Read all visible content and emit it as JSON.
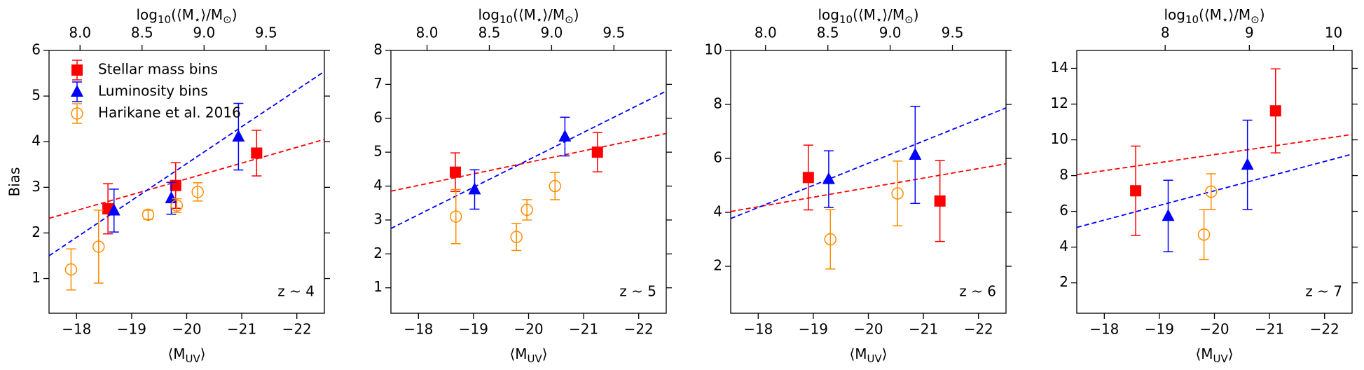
{
  "chart_data": [
    {
      "type": "scatter",
      "annotation": "z ~ 4",
      "legend": "upper left",
      "ylabel": "Bias",
      "xlabel": [
        "⟨M",
        "UV",
        "⟩"
      ],
      "x2label": [
        "log",
        "10",
        "(⟨M",
        "⋆",
        "⟩/M",
        "⊙",
        ")"
      ],
      "xlim": [
        -17.5,
        -22.5
      ],
      "xticks": [
        {
          "value": -18,
          "label": "−18"
        },
        {
          "value": -19,
          "label": "−19"
        },
        {
          "value": -20,
          "label": "−20"
        },
        {
          "value": -21,
          "label": "−21"
        },
        {
          "value": -22,
          "label": "−22"
        }
      ],
      "x2lim": [
        7.75,
        9.97
      ],
      "x2ticks": [
        {
          "value": 8,
          "label": "8.0"
        },
        {
          "value": 8.5,
          "label": "8.5"
        },
        {
          "value": 9,
          "label": "9.0"
        },
        {
          "value": 9.5,
          "label": "9.5"
        }
      ],
      "ylim": [
        0.24,
        6
      ],
      "yticks": [
        1,
        2,
        3,
        4,
        5,
        6
      ],
      "series": [
        {
          "name": "Stellar mass bins",
          "color": "#ff0000",
          "marker": "square",
          "x": [
            -18.57,
            -19.8,
            -21.27
          ],
          "values": [
            2.53,
            3.04,
            3.75
          ],
          "errors": [
            0.55,
            0.5,
            0.5
          ]
        },
        {
          "name": "Luminosity bins",
          "color": "#0000ff",
          "marker": "triangle",
          "x": [
            -18.68,
            -19.72,
            -20.94
          ],
          "values": [
            2.49,
            2.76,
            4.11
          ],
          "errors": [
            0.47,
            0.35,
            0.73
          ]
        },
        {
          "name": "Harikane et al. 2016",
          "color": "#ff8c00",
          "marker": "open-circle",
          "x": [
            -17.9,
            -18.4,
            -19.3,
            -19.82,
            -20.2
          ],
          "values": [
            1.2,
            1.7,
            2.4,
            2.6,
            2.9
          ],
          "errors": [
            0.45,
            0.8,
            0.1,
            0.15,
            0.2
          ]
        }
      ],
      "fits": [
        {
          "color": "#ff0000",
          "x": [
            -17.5,
            -22.5
          ],
          "values": [
            2.32,
            4.05
          ]
        },
        {
          "color": "#0000ff",
          "x": [
            -17.5,
            -22.5
          ],
          "values": [
            1.5,
            5.54
          ]
        }
      ]
    },
    {
      "type": "scatter",
      "annotation": "z ~ 5",
      "xlabel": [
        "⟨M",
        "UV",
        "⟩"
      ],
      "x2label": [
        "log",
        "10",
        "(⟨M",
        "⋆",
        "⟩/M",
        "⊙",
        ")"
      ],
      "xlim": [
        -17.5,
        -22.5
      ],
      "xticks": [
        {
          "value": -18,
          "label": "−18"
        },
        {
          "value": -19,
          "label": "−19"
        },
        {
          "value": -20,
          "label": "−20"
        },
        {
          "value": -21,
          "label": "−21"
        },
        {
          "value": -22,
          "label": "−22"
        }
      ],
      "x2lim": [
        7.71,
        9.92
      ],
      "x2ticks": [
        {
          "value": 8,
          "label": "8.0"
        },
        {
          "value": 8.5,
          "label": "8.5"
        },
        {
          "value": 9,
          "label": "9.0"
        },
        {
          "value": 9.5,
          "label": "9.5"
        }
      ],
      "ylim": [
        0.25,
        8
      ],
      "yticks": [
        1,
        2,
        3,
        4,
        5,
        6,
        7,
        8
      ],
      "series": [
        {
          "color": "#ff0000",
          "marker": "square",
          "x": [
            -18.67,
            -21.25
          ],
          "values": [
            4.41,
            5.0
          ],
          "errors": [
            0.57,
            0.58
          ]
        },
        {
          "color": "#0000ff",
          "marker": "triangle",
          "x": [
            -19.02,
            -20.66
          ],
          "values": [
            3.9,
            5.46
          ],
          "errors": [
            0.58,
            0.57
          ]
        },
        {
          "color": "#ff8c00",
          "marker": "open-circle",
          "x": [
            -18.68,
            -19.78,
            -19.97,
            -20.48
          ],
          "values": [
            3.1,
            2.5,
            3.3,
            4.0
          ],
          "errors": [
            0.8,
            0.4,
            0.3,
            0.4
          ]
        }
      ],
      "fits": [
        {
          "color": "#ff0000",
          "x": [
            -17.5,
            -22.5
          ],
          "values": [
            3.85,
            5.55
          ]
        },
        {
          "color": "#0000ff",
          "x": [
            -17.5,
            -22.5
          ],
          "values": [
            2.75,
            6.8
          ]
        }
      ]
    },
    {
      "type": "scatter",
      "annotation": "z ~ 6",
      "xlabel": [
        "⟨M",
        "UV",
        "⟩"
      ],
      "x2label": [
        "log",
        "10",
        "(⟨M",
        "⋆",
        "⟩/M",
        "⊙",
        ")"
      ],
      "xlim": [
        -17.5,
        -22.5
      ],
      "xticks": [
        {
          "value": -18,
          "label": "−18"
        },
        {
          "value": -19,
          "label": "−19"
        },
        {
          "value": -20,
          "label": "−20"
        },
        {
          "value": -21,
          "label": "−21"
        },
        {
          "value": -22,
          "label": "−22"
        }
      ],
      "x2lim": [
        7.72,
        9.93
      ],
      "x2ticks": [
        {
          "value": 8,
          "label": "8.0"
        },
        {
          "value": 8.5,
          "label": "8.5"
        },
        {
          "value": 9,
          "label": "9.0"
        },
        {
          "value": 9.5,
          "label": "9.5"
        }
      ],
      "ylim": [
        0.26,
        10
      ],
      "yticks": [
        2,
        4,
        6,
        8,
        10
      ],
      "series": [
        {
          "color": "#ff0000",
          "marker": "square",
          "x": [
            -18.91,
            -21.3
          ],
          "values": [
            5.29,
            4.42
          ],
          "errors": [
            1.2,
            1.5
          ]
        },
        {
          "color": "#0000ff",
          "marker": "triangle",
          "x": [
            -19.28,
            -20.85
          ],
          "values": [
            5.23,
            6.13
          ],
          "errors": [
            1.05,
            1.8
          ]
        },
        {
          "color": "#ff8c00",
          "marker": "open-circle",
          "x": [
            -19.31,
            -20.53
          ],
          "values": [
            3.0,
            4.7
          ],
          "errors": [
            1.1,
            1.2
          ]
        }
      ],
      "fits": [
        {
          "color": "#ff0000",
          "x": [
            -17.5,
            -22.5
          ],
          "values": [
            4.03,
            5.8
          ]
        },
        {
          "color": "#0000ff",
          "x": [
            -17.5,
            -22.5
          ],
          "values": [
            3.77,
            7.87
          ]
        }
      ]
    },
    {
      "type": "scatter",
      "annotation": "z ~ 7",
      "xlabel": [
        "⟨M",
        "UV",
        "⟩"
      ],
      "x2label": [
        "log",
        "10",
        "(⟨M",
        "⋆",
        "⟩/M",
        "⊙",
        ")"
      ],
      "xlim": [
        -17.5,
        -22.5
      ],
      "xticks": [
        {
          "value": -18,
          "label": "−18"
        },
        {
          "value": -19,
          "label": "−19"
        },
        {
          "value": -20,
          "label": "−20"
        },
        {
          "value": -21,
          "label": "−21"
        },
        {
          "value": -22,
          "label": "−22"
        }
      ],
      "x2lim": [
        6.95,
        10.22
      ],
      "x2ticks": [
        8,
        9,
        10
      ],
      "ylim": [
        0.3,
        15
      ],
      "yticks": [
        2,
        4,
        6,
        8,
        10,
        12,
        14
      ],
      "series": [
        {
          "color": "#ff0000",
          "marker": "square",
          "x": [
            -18.57,
            -21.11
          ],
          "values": [
            7.15,
            11.62
          ],
          "errors": [
            2.5,
            2.35
          ]
        },
        {
          "color": "#0000ff",
          "marker": "triangle",
          "x": [
            -19.16,
            -20.6
          ],
          "values": [
            5.74,
            8.6
          ],
          "errors": [
            2.0,
            2.5
          ]
        },
        {
          "color": "#ff8c00",
          "marker": "open-circle",
          "x": [
            -19.81,
            -19.94
          ],
          "values": [
            4.7,
            7.1
          ],
          "errors": [
            1.4,
            1.0
          ]
        }
      ],
      "fits": [
        {
          "color": "#ff0000",
          "x": [
            -17.5,
            -22.5
          ],
          "values": [
            8.05,
            10.3
          ]
        },
        {
          "color": "#0000ff",
          "x": [
            -17.5,
            -22.5
          ],
          "values": [
            5.1,
            9.2
          ]
        }
      ]
    }
  ]
}
